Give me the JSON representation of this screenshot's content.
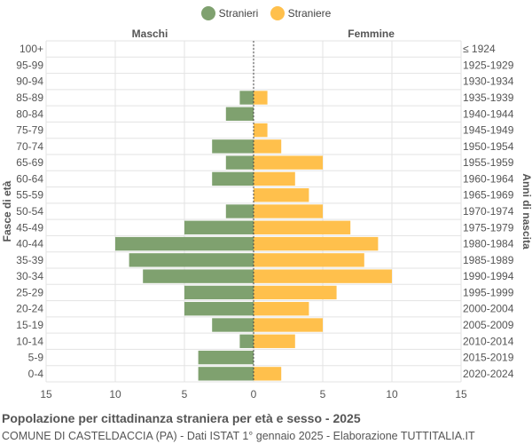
{
  "title": "Popolazione per cittadinanza straniera per età e sesso - 2025",
  "subtitle": "COMUNE DI CASTELDACCIA (PA) - Dati ISTAT 1° gennaio 2025 - Elaborazione TUTTITALIA.IT",
  "colors": {
    "male": "#7fa16f",
    "female": "#ffc04c",
    "grid": "#e3e3e3",
    "axis": "#555555",
    "text": "#555555"
  },
  "chart_data": {
    "type": "bar",
    "orientation": "horizontal-population-pyramid",
    "legend": [
      "Stranieri",
      "Straniere"
    ],
    "legend_position": "top-center",
    "left_header": "Maschi",
    "right_header": "Femmine",
    "ylabel_left": "Fasce di età",
    "ylabel_right": "Anni di nascita",
    "xlim": [
      -15,
      15
    ],
    "x_ticks": [
      "15",
      "10",
      "5",
      "0",
      "5",
      "10",
      "15"
    ],
    "grid": true,
    "categories": [
      "100+",
      "95-99",
      "90-94",
      "85-89",
      "80-84",
      "75-79",
      "70-74",
      "65-69",
      "60-64",
      "55-59",
      "50-54",
      "45-49",
      "40-44",
      "35-39",
      "30-34",
      "25-29",
      "20-24",
      "15-19",
      "10-14",
      "5-9",
      "0-4"
    ],
    "birth_years": [
      "≤ 1924",
      "1925-1929",
      "1930-1934",
      "1935-1939",
      "1940-1944",
      "1945-1949",
      "1950-1954",
      "1955-1959",
      "1960-1964",
      "1965-1969",
      "1970-1974",
      "1975-1979",
      "1980-1984",
      "1985-1989",
      "1990-1994",
      "1995-1999",
      "2000-2004",
      "2005-2009",
      "2010-2014",
      "2015-2019",
      "2020-2024"
    ],
    "series": [
      {
        "name": "Stranieri",
        "values": [
          0,
          0,
          0,
          1,
          2,
          0,
          3,
          2,
          3,
          0,
          2,
          5,
          10,
          9,
          8,
          5,
          5,
          3,
          1,
          4,
          4
        ]
      },
      {
        "name": "Straniere",
        "values": [
          0,
          0,
          0,
          1,
          0,
          1,
          2,
          5,
          3,
          4,
          5,
          7,
          9,
          8,
          10,
          6,
          4,
          5,
          3,
          0,
          2
        ]
      }
    ]
  }
}
